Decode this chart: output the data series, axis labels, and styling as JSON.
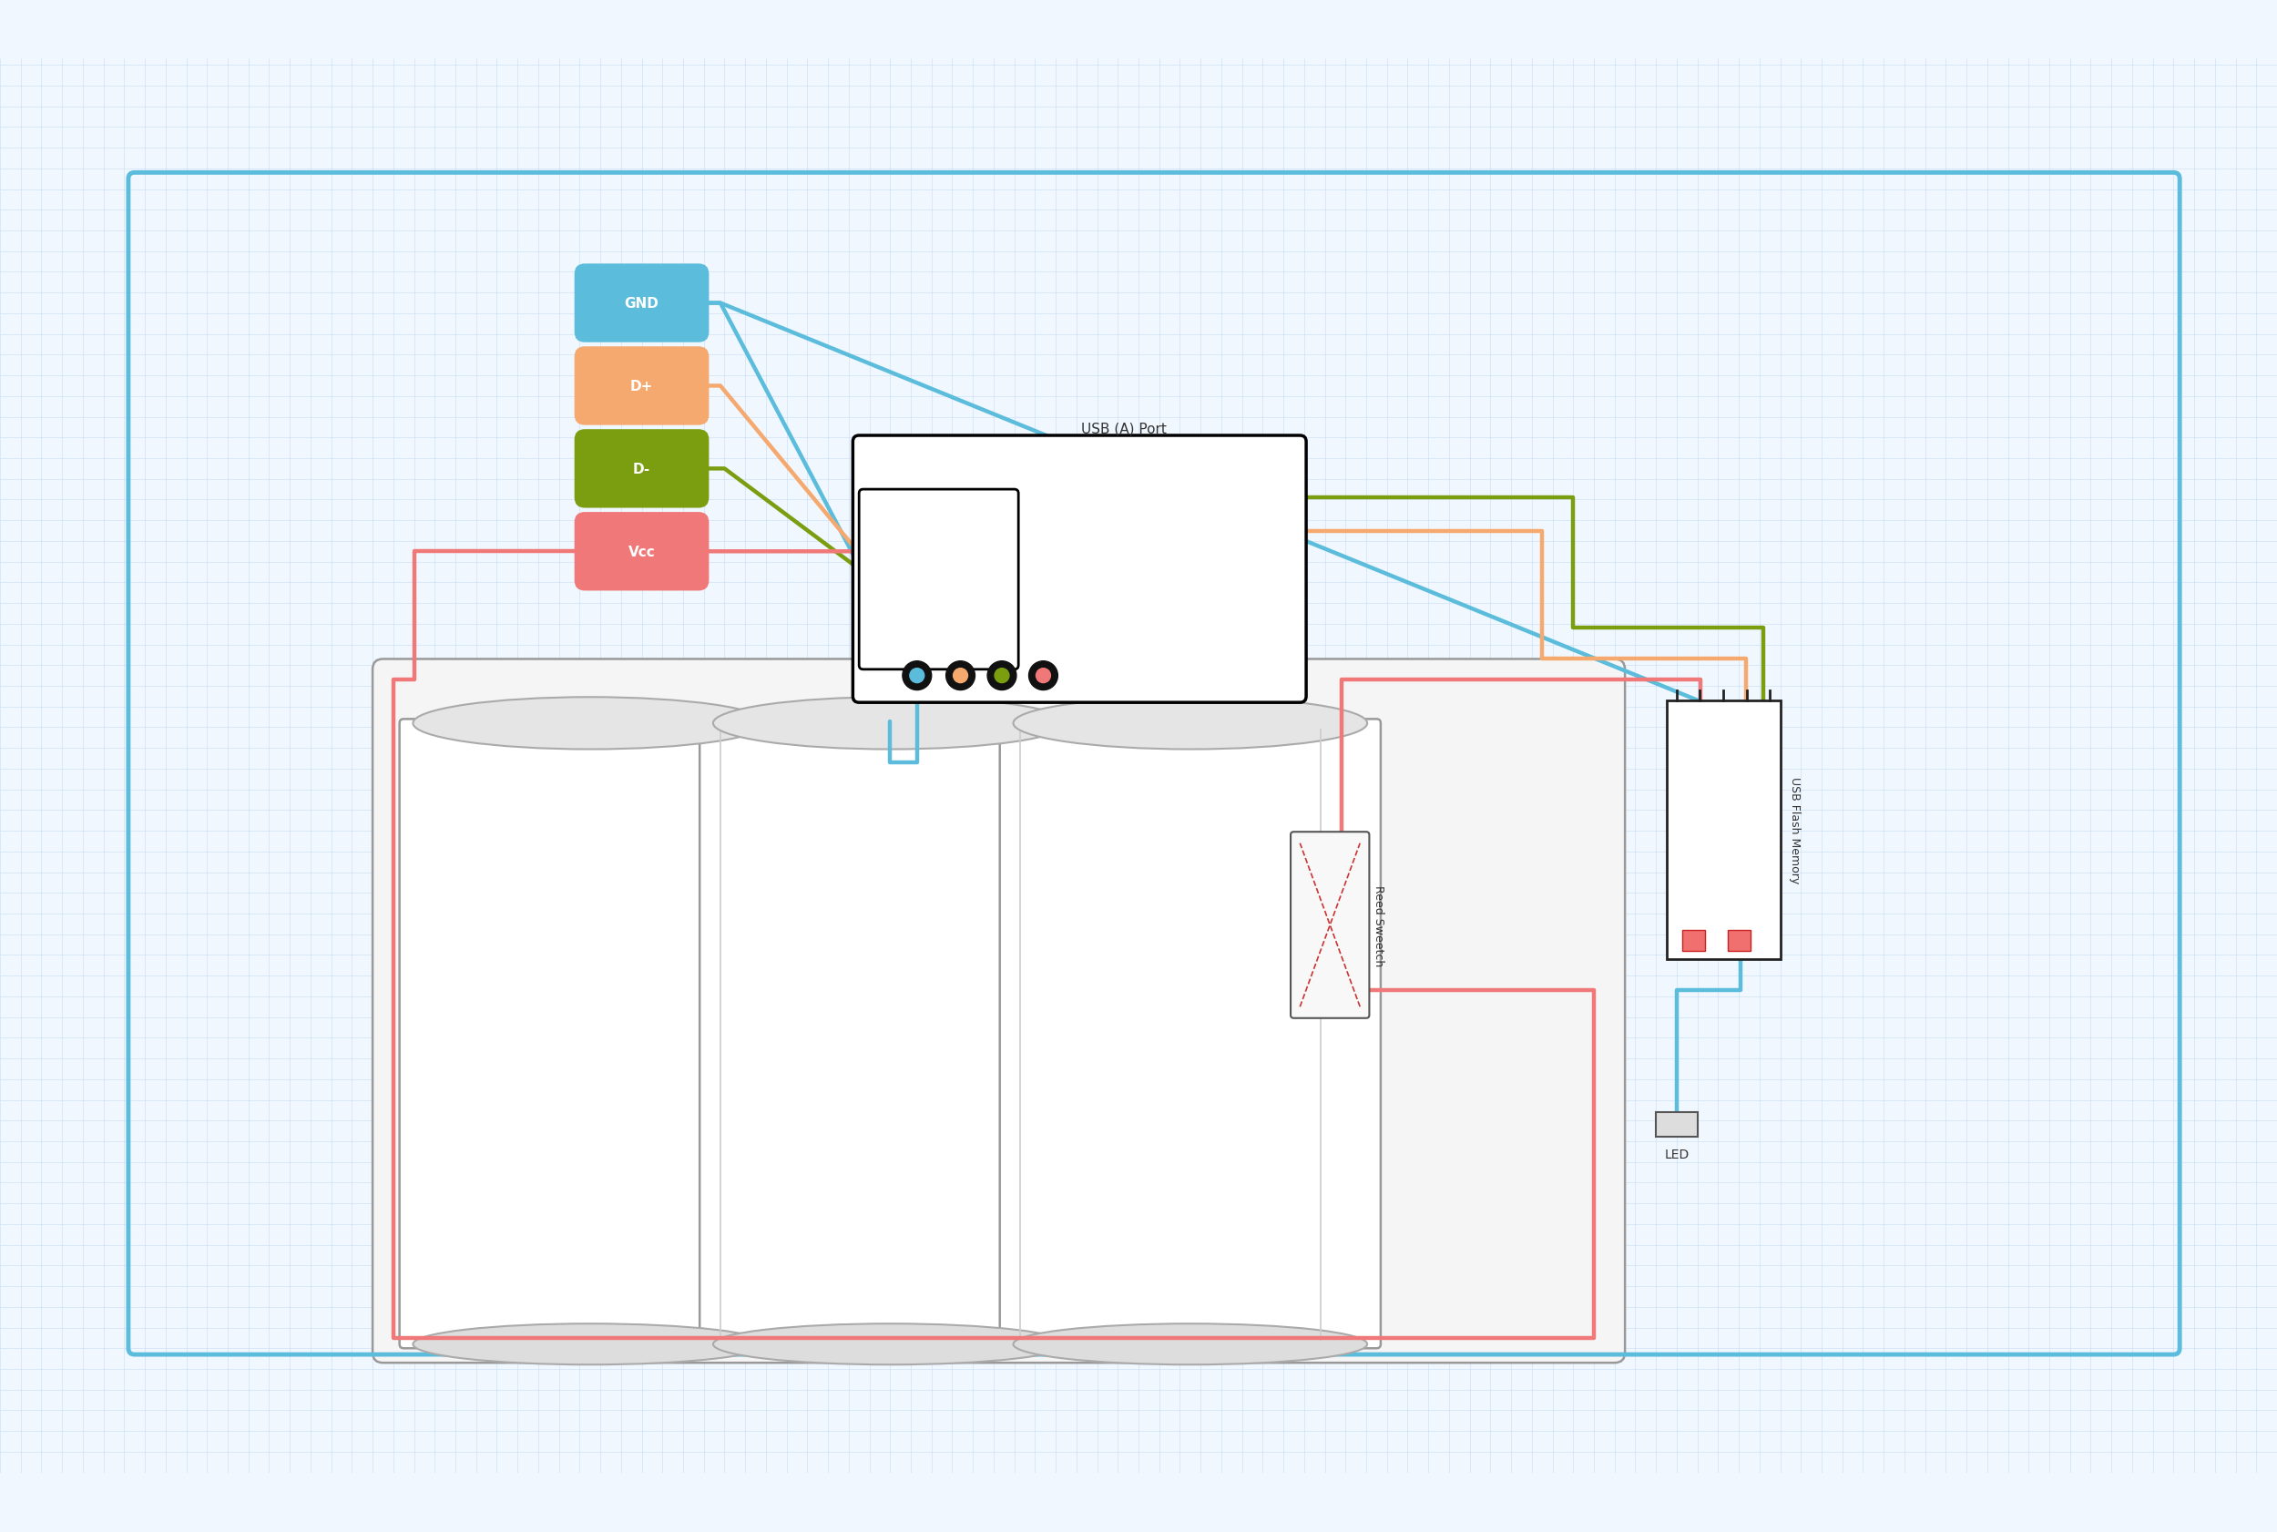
{
  "bg_color": "#f0f7ff",
  "grid_color": "#c5ddf5",
  "border_color": "#5bbcdb",
  "fig_width": 25.0,
  "fig_height": 16.83,
  "usb_port_label": "USB (A) Port",
  "usb_flash_label": "USB Flash Memory",
  "reed_switch_label": "Reed Sweetch",
  "led_label": "LED",
  "wire_lw": 3.2,
  "colors": {
    "GND": "#5bbcdb",
    "Dplus": "#f5a96e",
    "Dminus": "#7a9e10",
    "Vcc": "#f07878",
    "black": "#111111"
  },
  "label_colors": {
    "GND": "#5bbcdb",
    "D+": "#f5a96e",
    "D-": "#7a9e10",
    "Vcc": "#f07878"
  }
}
